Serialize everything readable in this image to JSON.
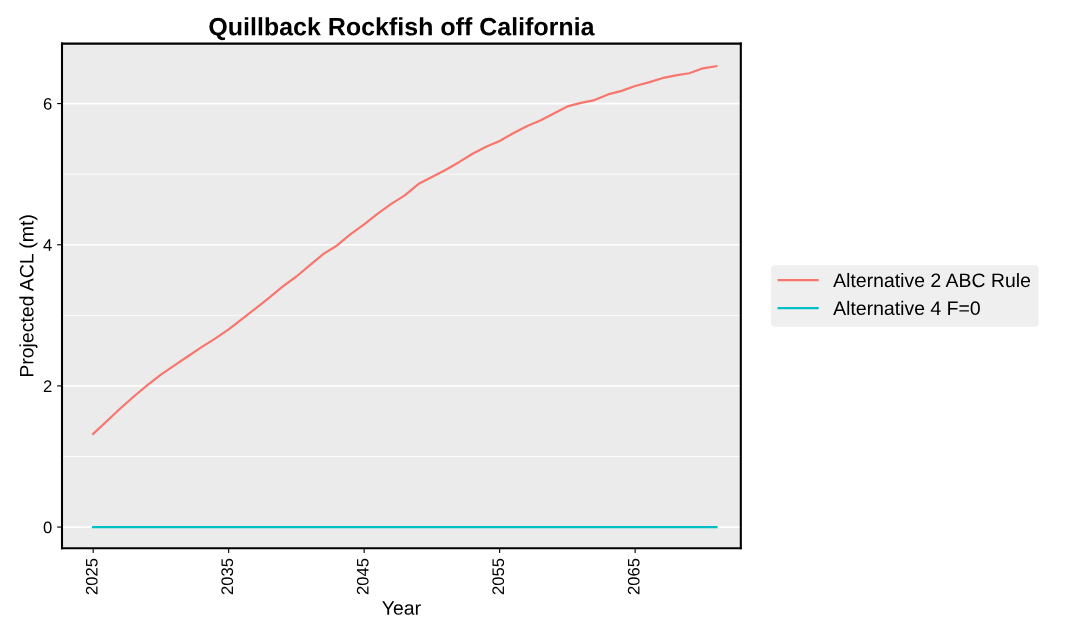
{
  "chart_data": {
    "type": "line",
    "title": "Quillback Rockfish off California",
    "xlabel": "Year",
    "ylabel": "Projected ACL (mt)",
    "x": [
      2025,
      2026,
      2027,
      2028,
      2029,
      2030,
      2031,
      2032,
      2033,
      2034,
      2035,
      2036,
      2037,
      2038,
      2039,
      2040,
      2041,
      2042,
      2043,
      2044,
      2045,
      2046,
      2047,
      2048,
      2049,
      2050,
      2051,
      2052,
      2053,
      2054,
      2055,
      2056,
      2057,
      2058,
      2059,
      2060,
      2061,
      2062,
      2063,
      2064,
      2065,
      2066,
      2067,
      2068,
      2069,
      2070,
      2071
    ],
    "series": [
      {
        "name": "Alternative 2 ABC Rule",
        "color": "#f8766d",
        "values": [
          1.32,
          1.5,
          1.68,
          1.85,
          2.01,
          2.16,
          2.29,
          2.42,
          2.55,
          2.67,
          2.8,
          2.95,
          3.1,
          3.25,
          3.41,
          3.55,
          3.71,
          3.87,
          3.99,
          4.15,
          4.29,
          4.44,
          4.58,
          4.7,
          4.86,
          4.96,
          5.06,
          5.17,
          5.29,
          5.39,
          5.47,
          5.58,
          5.68,
          5.76,
          5.86,
          5.96,
          6.01,
          6.05,
          6.13,
          6.18,
          6.25,
          6.3,
          6.36,
          6.4,
          6.43,
          6.5,
          6.53
        ]
      },
      {
        "name": "Alternative 4 F=0",
        "color": "#00bfc4",
        "values": [
          0,
          0,
          0,
          0,
          0,
          0,
          0,
          0,
          0,
          0,
          0,
          0,
          0,
          0,
          0,
          0,
          0,
          0,
          0,
          0,
          0,
          0,
          0,
          0,
          0,
          0,
          0,
          0,
          0,
          0,
          0,
          0,
          0,
          0,
          0,
          0,
          0,
          0,
          0,
          0,
          0,
          0,
          0,
          0,
          0,
          0,
          0
        ]
      }
    ],
    "xlim": [
      2022.7,
      2072.8
    ],
    "ylim": [
      -0.3,
      6.85
    ],
    "xticks": [
      2025,
      2035,
      2045,
      2055,
      2065
    ],
    "yticks": [
      0,
      2,
      4,
      6
    ],
    "grid": "y",
    "legend": "right",
    "marker": "none",
    "line_style": "solid"
  }
}
